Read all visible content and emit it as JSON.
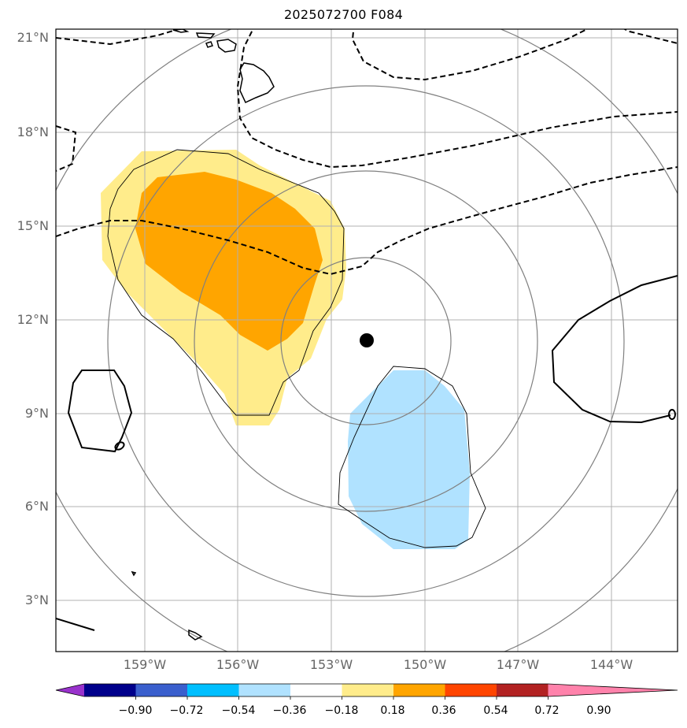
{
  "title": "2025072700 F084",
  "lat_labels": [
    "21°N",
    "18°N",
    "15°N",
    "12°N",
    "9°N",
    "6°N",
    "3°N"
  ],
  "lon_labels": [
    "159°W",
    "156°W",
    "153°W",
    "150°W",
    "147°W",
    "144°W"
  ],
  "colorbar": {
    "ticks": [
      "−0.90",
      "−0.72",
      "−0.54",
      "−0.36",
      "−0.18",
      "0.18",
      "0.36",
      "0.54",
      "0.72",
      "0.90"
    ],
    "colors": [
      "#9932cc",
      "#00008b",
      "#3a5fcd",
      "#00bfff",
      "#b0e2ff",
      "#ffffff",
      "#ffec8b",
      "#ffa500",
      "#ff4500",
      "#b22222",
      "#ff82ab"
    ]
  },
  "legend_colors": {
    "positive_light": "#ffec8b",
    "positive_mid": "#ffa500",
    "negative_light": "#b0e2ff",
    "storm_center": "#000000",
    "grid": "#b0b0b0",
    "range_rings": "#808080"
  },
  "icons": {
    "storm_center": "filled-circle-marker"
  }
}
